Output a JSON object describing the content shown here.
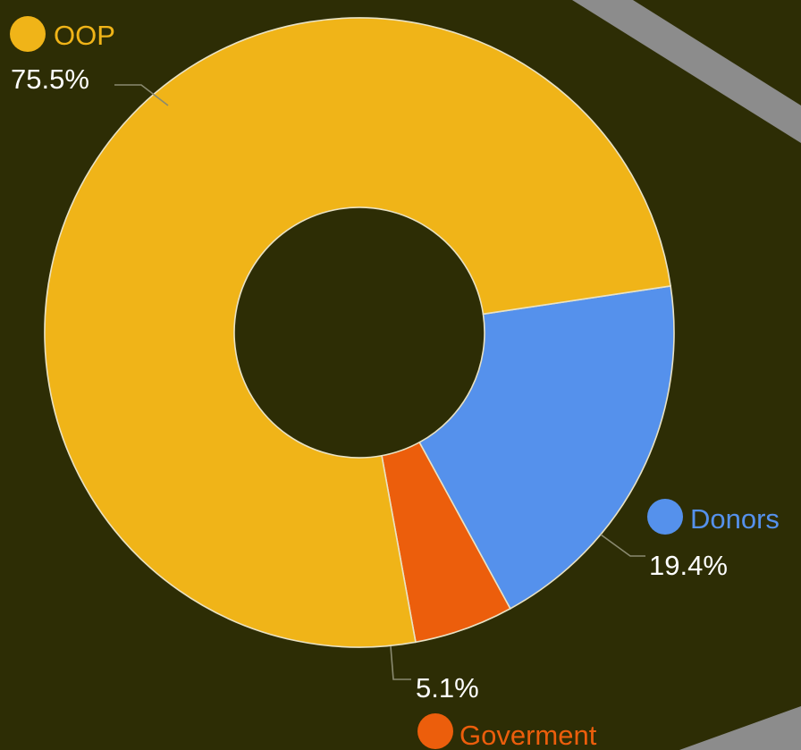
{
  "chart_data": {
    "type": "pie",
    "donut": true,
    "legend": "labels beside slices",
    "slices": [
      {
        "name": "OOP",
        "value": 75.5,
        "label": "75.5%",
        "color": "#f0b418"
      },
      {
        "name": "Donors",
        "value": 19.4,
        "label": "19.4%",
        "color": "#5591ec"
      },
      {
        "name": "Goverment",
        "value": 5.1,
        "label": "5.1%",
        "color": "#ec5e0c"
      }
    ]
  },
  "colors": {
    "background": "#2d2d05",
    "decorative_band": "#8c8c8c"
  }
}
